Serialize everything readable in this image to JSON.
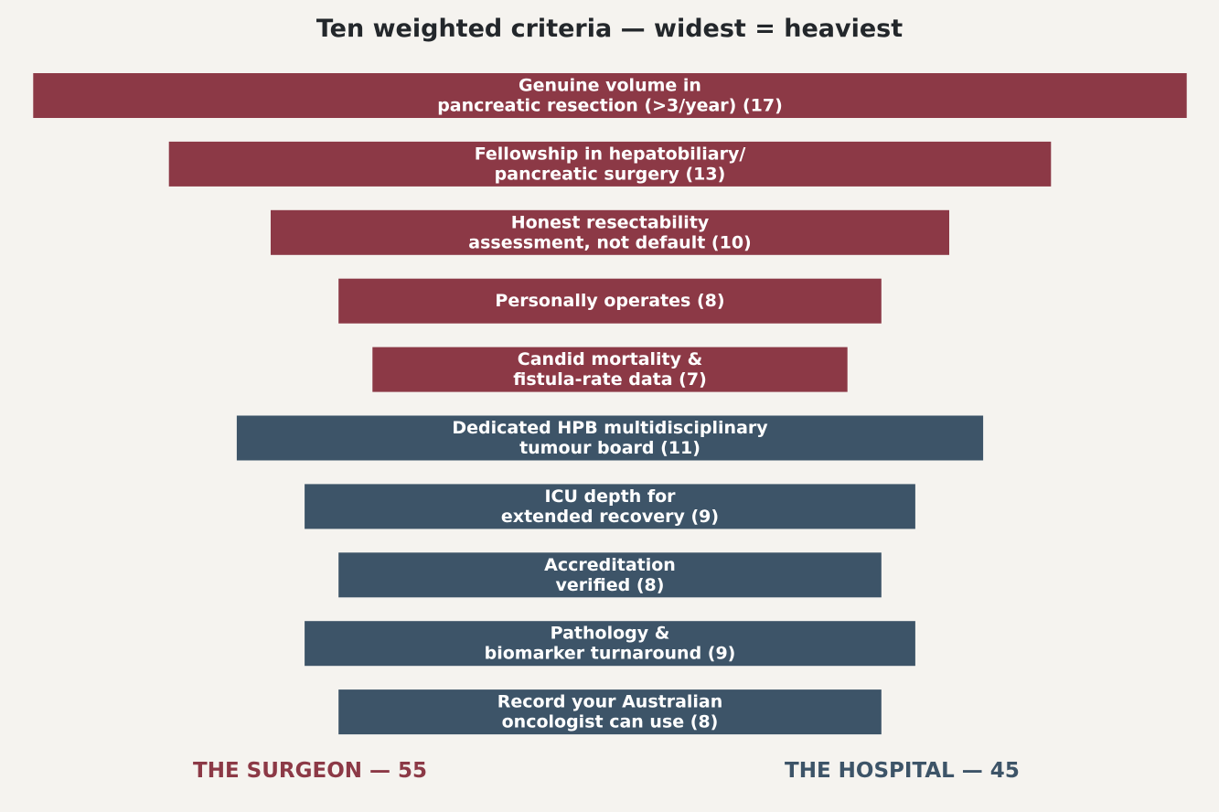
{
  "chart_data": {
    "type": "bar",
    "orientation": "horizontal-centered",
    "title": "Ten weighted criteria — widest = heaviest",
    "xlabel": "",
    "ylabel": "",
    "grid": false,
    "groups": [
      {
        "name": "THE SURGEON — 55",
        "color": "#8c3946",
        "total": 55
      },
      {
        "name": "THE HOSPITAL — 45",
        "color": "#3d5468",
        "total": 45
      }
    ],
    "bars": [
      {
        "group": 0,
        "value": 17,
        "label_lines": [
          "Genuine volume in",
          "pancreatic resection (>3/year)  (17)"
        ]
      },
      {
        "group": 0,
        "value": 13,
        "label_lines": [
          "Fellowship in hepatobiliary/",
          "pancreatic surgery  (13)"
        ]
      },
      {
        "group": 0,
        "value": 10,
        "label_lines": [
          "Honest resectability",
          "assessment, not default  (10)"
        ]
      },
      {
        "group": 0,
        "value": 8,
        "label_lines": [
          "Personally operates  (8)"
        ]
      },
      {
        "group": 0,
        "value": 7,
        "label_lines": [
          "Candid mortality &",
          "fistula-rate data  (7)"
        ]
      },
      {
        "group": 1,
        "value": 11,
        "label_lines": [
          "Dedicated HPB multidisciplinary",
          "tumour board  (11)"
        ]
      },
      {
        "group": 1,
        "value": 9,
        "label_lines": [
          "ICU depth for",
          "extended recovery  (9)"
        ]
      },
      {
        "group": 1,
        "value": 8,
        "label_lines": [
          "Accreditation",
          "verified  (8)"
        ]
      },
      {
        "group": 1,
        "value": 9,
        "label_lines": [
          "Pathology &",
          "biomarker turnaround  (9)"
        ]
      },
      {
        "group": 1,
        "value": 8,
        "label_lines": [
          "Record your Australian",
          "oncologist can use  (8)"
        ]
      }
    ]
  }
}
